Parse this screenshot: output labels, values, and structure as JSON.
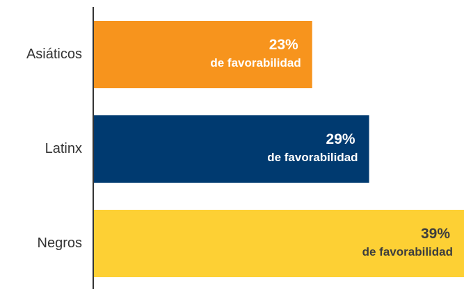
{
  "chart_data": {
    "type": "hbar",
    "categories": [
      "Asiáticos",
      "Latinx",
      "Negros"
    ],
    "values": [
      23,
      29,
      39
    ],
    "value_labels": [
      "23%",
      "29%",
      "39%"
    ],
    "annotation": "de favorabilidad",
    "colors": [
      "#f7941d",
      "#003a70",
      "#fdd034"
    ],
    "label_colors": [
      "#ffffff",
      "#ffffff",
      "#3d3d3d"
    ],
    "xlim": [
      0,
      39
    ]
  }
}
